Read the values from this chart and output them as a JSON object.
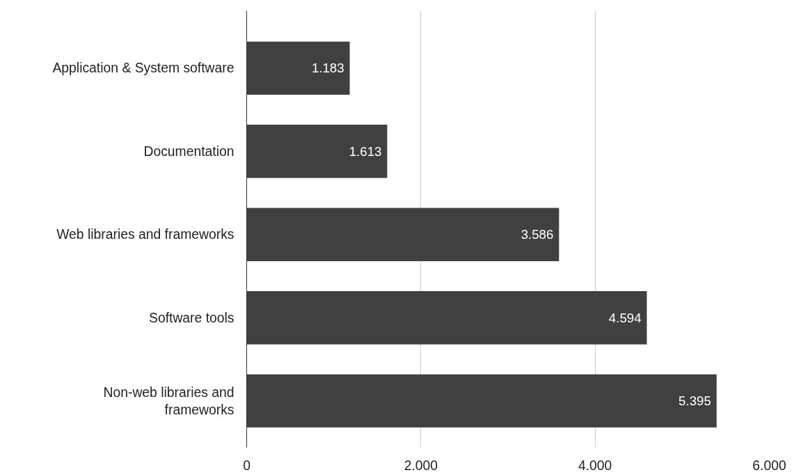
{
  "chart_data": {
    "type": "bar",
    "orientation": "horizontal",
    "categories": [
      "Application & System software",
      "Documentation",
      "Web libraries and frameworks",
      "Software tools",
      "Non-web libraries and frameworks"
    ],
    "values": [
      1183,
      1613,
      3586,
      4594,
      5395
    ],
    "value_labels": [
      "1.183",
      "1.613",
      "3.586",
      "4.594",
      "5.395"
    ],
    "color": "#404040",
    "xlim": [
      0,
      6000
    ],
    "xticks": [
      0,
      {
        "value": 2000,
        "label": "2.000"
      },
      {
        "value": 4000,
        "label": "4.000"
      },
      {
        "value": 6000,
        "label": "6.000"
      }
    ],
    "grid": "x"
  }
}
